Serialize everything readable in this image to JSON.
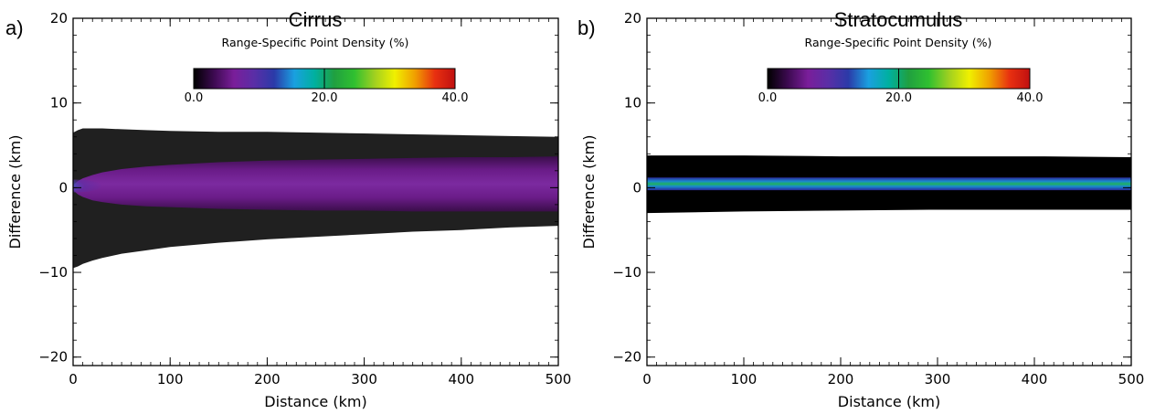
{
  "chart_data": [
    {
      "type": "heatmap",
      "panel_label": "a)",
      "title": "Cirrus",
      "colorbar": {
        "title": "Range-Specific Point Density (%)",
        "range": [
          0,
          40
        ],
        "tick_labels": [
          "0.0",
          "20.0",
          "40.0"
        ],
        "tick_values": [
          0,
          20,
          40
        ],
        "colors": [
          "#000000",
          "#3c0a50",
          "#7a1e9a",
          "#5a2ea6",
          "#2b3aa8",
          "#1aa0e0",
          "#00b0a0",
          "#20a040",
          "#30c030",
          "#a0d020",
          "#f0f000",
          "#f0a000",
          "#e83010",
          "#c01010"
        ],
        "position": "top-center"
      },
      "xlabel": "Distance (km)",
      "ylabel": "Difference (km)",
      "xlim": [
        0,
        500
      ],
      "ylim": [
        -21,
        20
      ],
      "xticks": [
        0,
        100,
        200,
        300,
        400,
        500
      ],
      "yticks": [
        -20,
        -10,
        0,
        10,
        20
      ],
      "density_profile": {
        "x": [
          0,
          5,
          10,
          20,
          30,
          50,
          75,
          100,
          150,
          200,
          250,
          300,
          350,
          400,
          450,
          500
        ],
        "core_upper": [
          0.3,
          0.8,
          1.1,
          1.5,
          1.8,
          2.2,
          2.5,
          2.7,
          3.0,
          3.2,
          3.3,
          3.4,
          3.5,
          3.6,
          3.6,
          3.7
        ],
        "core_lower": [
          -0.3,
          -0.8,
          -1.1,
          -1.5,
          -1.7,
          -2.0,
          -2.2,
          -2.3,
          -2.5,
          -2.6,
          -2.7,
          -2.7,
          -2.8,
          -2.8,
          -2.8,
          -2.8
        ],
        "outer_upper": [
          6.5,
          6.8,
          7.0,
          7.0,
          7.0,
          6.9,
          6.8,
          6.7,
          6.6,
          6.6,
          6.5,
          6.4,
          6.3,
          6.2,
          6.1,
          6.0
        ],
        "outer_lower": [
          -9.5,
          -9.3,
          -9.0,
          -8.6,
          -8.3,
          -7.8,
          -7.4,
          -7.0,
          -6.5,
          -6.1,
          -5.8,
          -5.5,
          -5.2,
          -5.0,
          -4.7,
          -4.5
        ],
        "peak_density_near_origin": 20.0
      }
    },
    {
      "type": "heatmap",
      "panel_label": "b)",
      "title": "Stratocumulus",
      "colorbar": {
        "title": "Range-Specific Point Density (%)",
        "range": [
          0,
          40
        ],
        "tick_labels": [
          "0.0",
          "20.0",
          "40.0"
        ],
        "tick_values": [
          0,
          20,
          40
        ],
        "colors": [
          "#000000",
          "#3c0a50",
          "#7a1e9a",
          "#5a2ea6",
          "#2b3aa8",
          "#1aa0e0",
          "#00b0a0",
          "#20a040",
          "#30c030",
          "#a0d020",
          "#f0f000",
          "#f0a000",
          "#e83010",
          "#c01010"
        ],
        "position": "top-center"
      },
      "xlabel": "Distance (km)",
      "ylabel": "Difference (km)",
      "xlim": [
        0,
        500
      ],
      "ylim": [
        -21,
        20
      ],
      "xticks": [
        0,
        100,
        200,
        300,
        400,
        500
      ],
      "yticks": [
        -20,
        -10,
        0,
        10,
        20
      ],
      "density_profile": {
        "x": [
          0,
          100,
          200,
          300,
          400,
          500
        ],
        "core_upper": [
          1.2,
          1.2,
          1.2,
          1.2,
          1.2,
          1.2
        ],
        "core_lower": [
          -0.3,
          -0.3,
          -0.3,
          -0.3,
          -0.3,
          -0.3
        ],
        "outer_upper": [
          3.8,
          3.8,
          3.7,
          3.7,
          3.7,
          3.6
        ],
        "outer_lower": [
          -3.0,
          -2.8,
          -2.7,
          -2.6,
          -2.6,
          -2.6
        ],
        "band_center": 0.5,
        "peak_density_along_band": 20.0
      }
    }
  ]
}
